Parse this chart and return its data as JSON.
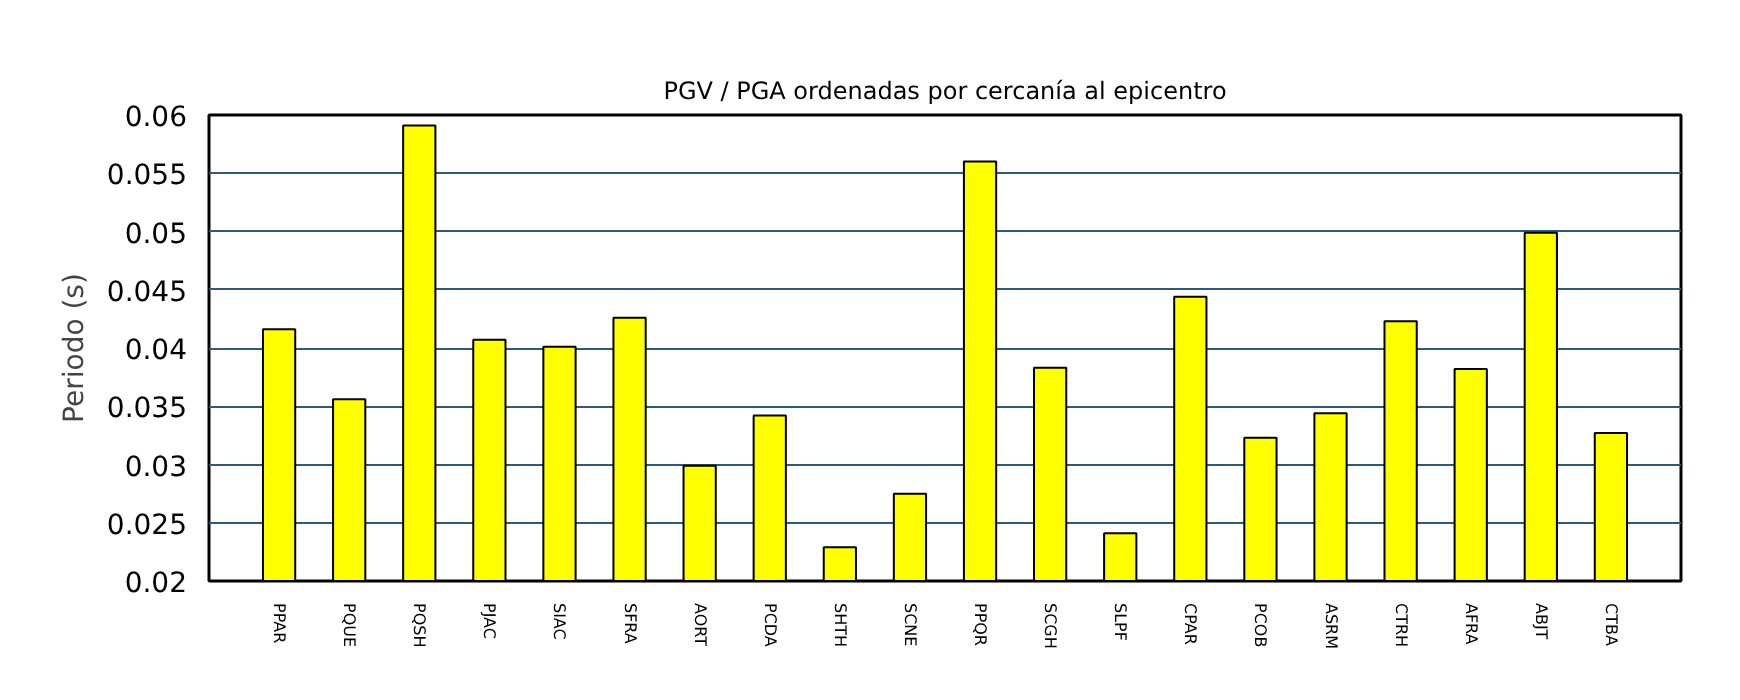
{
  "chart_data": {
    "type": "bar",
    "title": "PGV / PGA ordenadas por cercanía al epicentro",
    "ylabel": "Periodo (s)",
    "categories": [
      "PPAR",
      "PQUE",
      "PQSH",
      "PJAC",
      "SIAC",
      "SFRA",
      "AORT",
      "PCDA",
      "SHTH",
      "SCNE",
      "PPQR",
      "SCGH",
      "SLPF",
      "CPAR",
      "PCOB",
      "ASRM",
      "CTRH",
      "AFRA",
      "ABJT",
      "CTBA"
    ],
    "values": [
      0.0416,
      0.0356,
      0.0591,
      0.0407,
      0.0401,
      0.0426,
      0.0299,
      0.0342,
      0.0229,
      0.0275,
      0.056,
      0.0383,
      0.0241,
      0.0444,
      0.0323,
      0.0344,
      0.0423,
      0.0382,
      0.0499,
      0.0327
    ],
    "color": "#ffff00",
    "ylim": [
      0.02,
      0.06
    ],
    "yticks": [
      0.02,
      0.025,
      0.03,
      0.035,
      0.04,
      0.045,
      0.05,
      0.055,
      0.06
    ],
    "grid": "y"
  }
}
